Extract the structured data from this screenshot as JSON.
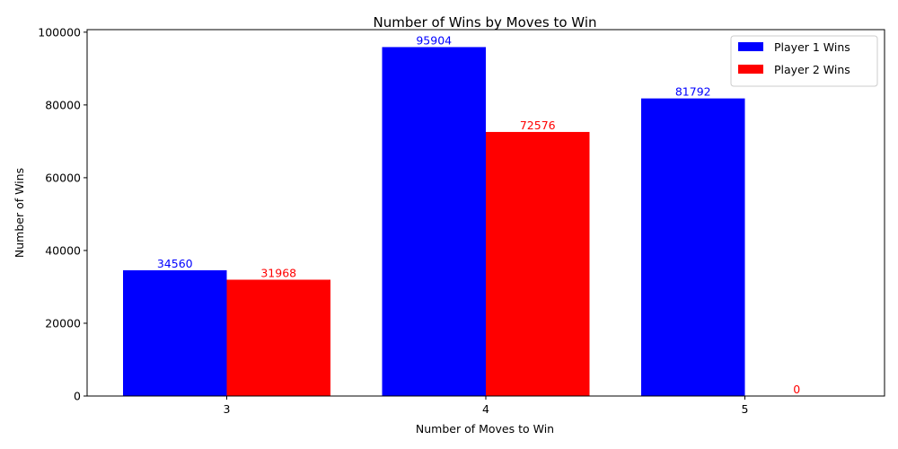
{
  "chart_data": {
    "type": "bar",
    "title": "Number of Wins by Moves to Win",
    "xlabel": "Number of Moves to Win",
    "ylabel": "Number of Wins",
    "categories": [
      "3",
      "4",
      "5"
    ],
    "series": [
      {
        "name": "Player 1 Wins",
        "values": [
          34560,
          95904,
          81792
        ],
        "color": "#0000ff"
      },
      {
        "name": "Player 2 Wins",
        "values": [
          31968,
          72576,
          0
        ],
        "color": "#ff0000"
      }
    ],
    "ylim": [
      0,
      100700
    ],
    "yticks": [
      0,
      20000,
      40000,
      60000,
      80000,
      100000
    ],
    "grid": false,
    "legend_position": "top-right"
  }
}
